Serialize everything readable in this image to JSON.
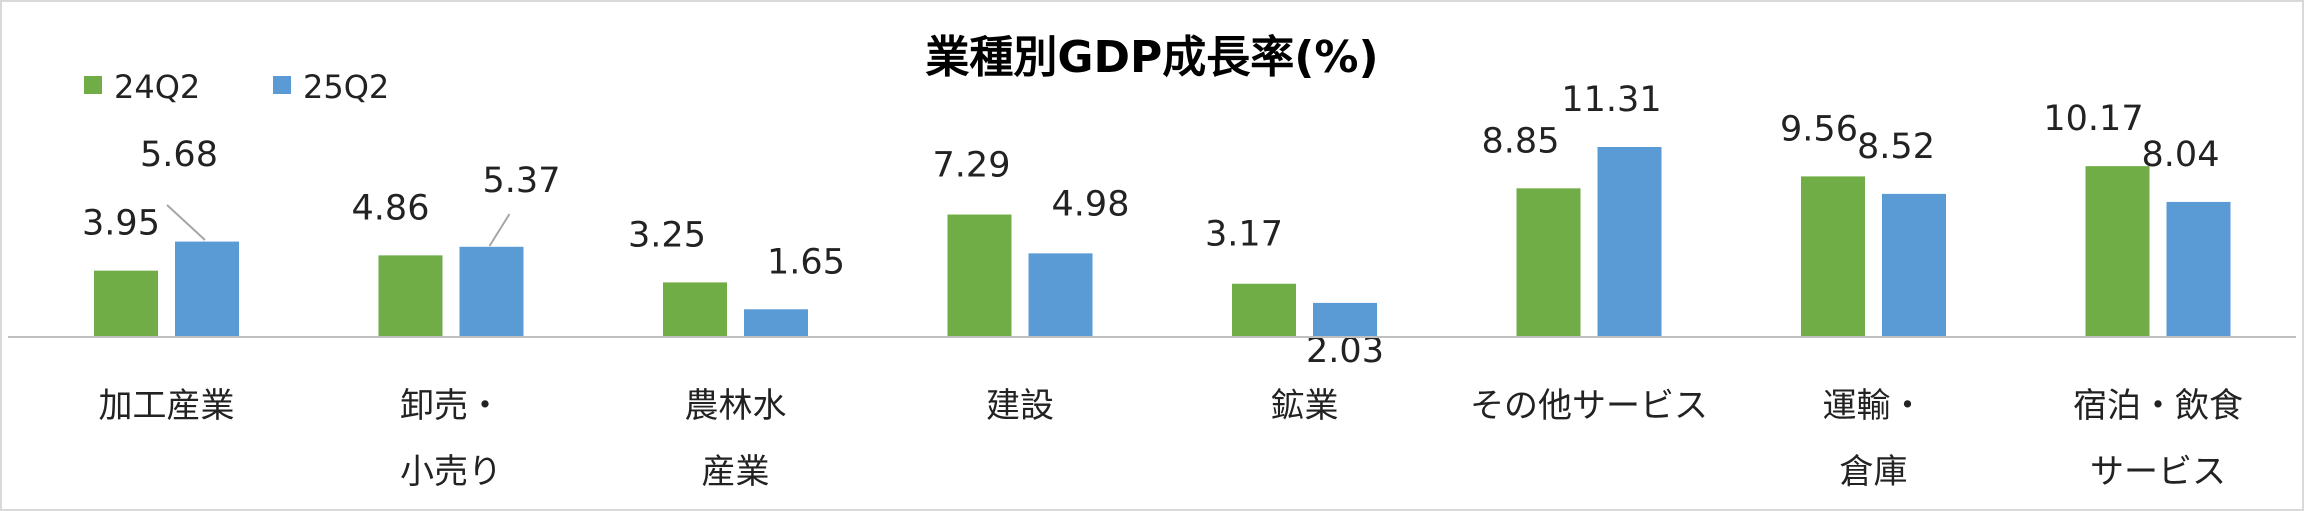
{
  "chart_data": {
    "type": "bar",
    "title": "業種別GDP成長率(%)",
    "categories": [
      [
        "加工産業"
      ],
      [
        "卸売・",
        "小売り"
      ],
      [
        "農林水",
        "産業"
      ],
      [
        "建設"
      ],
      [
        "鉱業"
      ],
      [
        "その他サービス"
      ],
      [
        "運輸・",
        "倉庫"
      ],
      [
        "宿泊・飲食",
        "サービス"
      ]
    ],
    "series": [
      {
        "name": "24Q2",
        "color": "#70ad47",
        "values": [
          3.95,
          4.86,
          3.25,
          7.29,
          3.17,
          8.85,
          9.56,
          10.17
        ]
      },
      {
        "name": "25Q2",
        "color": "#5b9bd5",
        "values": [
          5.68,
          5.37,
          1.65,
          4.98,
          2.03,
          11.31,
          8.52,
          8.04
        ]
      }
    ],
    "value_labels": [
      [
        "3.95",
        "4.86",
        "3.25",
        "7.29",
        "3.17",
        "8.85",
        "9.56",
        "10.17"
      ],
      [
        "5.68",
        "5.37",
        "1.65",
        "4.98",
        "2.03",
        "11.31",
        "8.52",
        "8.04"
      ]
    ],
    "ylim": [
      0,
      11.31
    ],
    "grid": false,
    "legend": "top-left",
    "xlabel": "",
    "ylabel": ""
  }
}
